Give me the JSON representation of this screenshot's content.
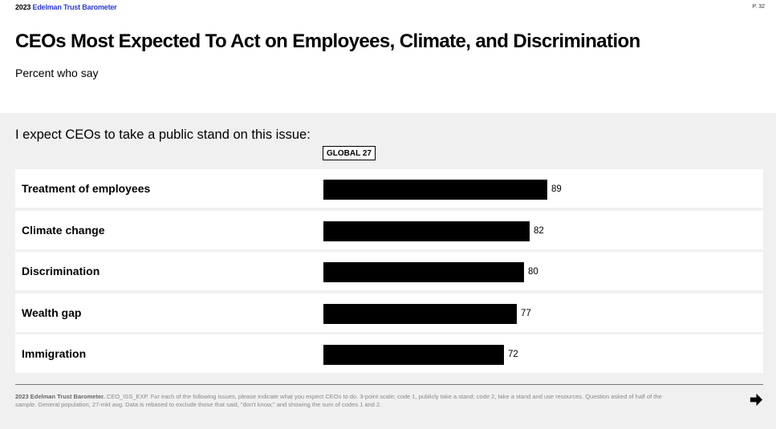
{
  "header": {
    "brand_year": "2023",
    "brand_name": "Edelman Trust Barometer",
    "page": "P. 32"
  },
  "title": "CEOs Most Expected To Act on Employees, Climate, and Discrimination",
  "subtitle": "Percent who say",
  "question": "I expect CEOs to take a public stand on this issue:",
  "colors": {
    "bar": "#000000",
    "brand_accent": "#2b3bd6",
    "row_background": "#ffffff",
    "page_background": "#f0f0f0"
  },
  "chart_data": {
    "type": "bar",
    "orientation": "horizontal",
    "categories": [
      "Treatment of employees",
      "Climate change",
      "Discrimination",
      "Wealth gap",
      "Immigration"
    ],
    "series": [
      {
        "name": "GLOBAL 27",
        "values": [
          89,
          82,
          80,
          77,
          72
        ]
      }
    ],
    "xlim": [
      0,
      100
    ],
    "grid": false
  },
  "footnote": {
    "source": "2023 Edelman Trust Barometer.",
    "text": " CEO_ISS_EXP. For each of the following issues, please indicate what you expect CEOs to do. 3-point scale; code 1, publicly take a stand; code 2, take a stand and use resources. Question asked of half of the sample. General population, 27-mkt avg. Data is rebased to exclude those that said, \"don't know,\" and showing the sum of codes 1 and 2."
  },
  "nav": {
    "next_icon": "arrow-right-icon"
  }
}
